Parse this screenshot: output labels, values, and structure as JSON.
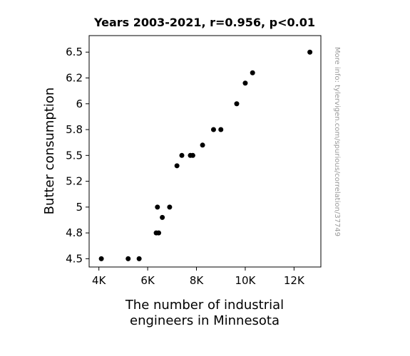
{
  "chart_data": {
    "type": "scatter",
    "title": "Years 2003-2021, r=0.956, p<0.01",
    "xlabel_lines": [
      "The number of industrial",
      "engineers in Minnesota"
    ],
    "ylabel": "Butter consumption",
    "side_note": "More info: tylervigen.com/spurious/correlation/37749",
    "xlim": [
      3600,
      13100
    ],
    "ylim": [
      4.42,
      6.66
    ],
    "x_ticks": [
      {
        "value": 4000,
        "label": "4K"
      },
      {
        "value": 6000,
        "label": "6K"
      },
      {
        "value": 8000,
        "label": "8K"
      },
      {
        "value": 10000,
        "label": "10K"
      },
      {
        "value": 12000,
        "label": "12K"
      }
    ],
    "y_ticks": [
      {
        "value": 4.5,
        "label": "4.5"
      },
      {
        "value": 4.75,
        "label": "4.8"
      },
      {
        "value": 5.0,
        "label": "5"
      },
      {
        "value": 5.25,
        "label": "5.2"
      },
      {
        "value": 5.5,
        "label": "5.5"
      },
      {
        "value": 5.75,
        "label": "5.8"
      },
      {
        "value": 6.0,
        "label": "6"
      },
      {
        "value": 6.25,
        "label": "6.2"
      },
      {
        "value": 6.5,
        "label": "6.5"
      }
    ],
    "grid": false,
    "marker_color": "#000000",
    "points": [
      {
        "x": 4100,
        "y": 4.5
      },
      {
        "x": 5200,
        "y": 4.5
      },
      {
        "x": 5650,
        "y": 4.5
      },
      {
        "x": 6350,
        "y": 4.75
      },
      {
        "x": 6450,
        "y": 4.75
      },
      {
        "x": 6400,
        "y": 5.0
      },
      {
        "x": 6600,
        "y": 4.9
      },
      {
        "x": 6900,
        "y": 5.0
      },
      {
        "x": 7200,
        "y": 5.4
      },
      {
        "x": 7400,
        "y": 5.5
      },
      {
        "x": 7750,
        "y": 5.5
      },
      {
        "x": 7850,
        "y": 5.5
      },
      {
        "x": 8250,
        "y": 5.6
      },
      {
        "x": 8700,
        "y": 5.75
      },
      {
        "x": 9000,
        "y": 5.75
      },
      {
        "x": 9650,
        "y": 6.0
      },
      {
        "x": 10000,
        "y": 6.2
      },
      {
        "x": 10300,
        "y": 6.3
      },
      {
        "x": 12650,
        "y": 6.5
      }
    ]
  }
}
